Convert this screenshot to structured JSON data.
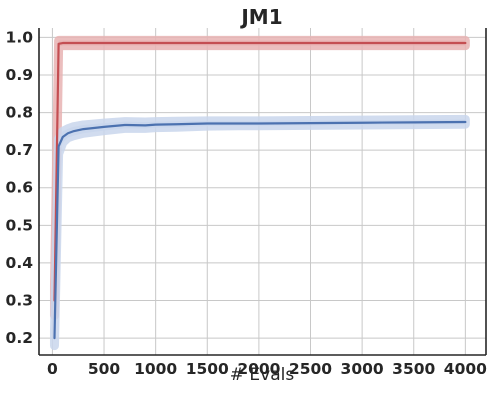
{
  "chart_data": {
    "type": "line",
    "title": "JM1",
    "xlabel": "# Evals",
    "ylabel": "",
    "xlim": [
      -130,
      4200
    ],
    "ylim": [
      0.155,
      1.025
    ],
    "xticks": [
      0,
      500,
      1000,
      1500,
      2000,
      2500,
      3000,
      3500,
      4000
    ],
    "yticks": [
      0.2,
      0.3,
      0.4,
      0.5,
      0.6,
      0.7,
      0.8,
      0.9,
      1.0
    ],
    "xtick_labels": [
      "0",
      "500",
      "1000",
      "1500",
      "2000",
      "2500",
      "3000",
      "3500",
      "4000"
    ],
    "ytick_labels": [
      "0.2",
      "0.3",
      "0.4",
      "0.5",
      "0.6",
      "0.7",
      "0.8",
      "0.9",
      "1.0"
    ],
    "grid": true,
    "series": [
      {
        "color": "#c44e52",
        "band_color": "#e8b3b3",
        "x": [
          20,
          60,
          100,
          200,
          500,
          1000,
          1500,
          2000,
          2500,
          3000,
          3500,
          4000
        ],
        "y": [
          0.3,
          0.983,
          0.985,
          0.985,
          0.985,
          0.985,
          0.985,
          0.985,
          0.985,
          0.985,
          0.985,
          0.985
        ],
        "lower": [
          0.26,
          0.975,
          0.978,
          0.978,
          0.978,
          0.978,
          0.978,
          0.978,
          0.978,
          0.978,
          0.978,
          0.978
        ],
        "upper": [
          0.34,
          0.992,
          0.992,
          0.992,
          0.992,
          0.992,
          0.992,
          0.992,
          0.992,
          0.992,
          0.992,
          0.992
        ]
      },
      {
        "color": "#4c72b0",
        "band_color": "#c9d6ec",
        "x": [
          20,
          60,
          100,
          150,
          200,
          300,
          500,
          700,
          900,
          1000,
          1200,
          1500,
          1800,
          2000,
          2500,
          3000,
          3500,
          4000
        ],
        "y": [
          0.2,
          0.71,
          0.735,
          0.745,
          0.75,
          0.756,
          0.762,
          0.767,
          0.766,
          0.768,
          0.769,
          0.771,
          0.771,
          0.771,
          0.772,
          0.773,
          0.774,
          0.775
        ],
        "lower": [
          0.18,
          0.69,
          0.72,
          0.733,
          0.738,
          0.745,
          0.752,
          0.758,
          0.758,
          0.76,
          0.761,
          0.764,
          0.765,
          0.765,
          0.766,
          0.767,
          0.768,
          0.769
        ],
        "upper": [
          0.22,
          0.73,
          0.75,
          0.757,
          0.762,
          0.767,
          0.772,
          0.776,
          0.775,
          0.776,
          0.777,
          0.778,
          0.778,
          0.778,
          0.779,
          0.78,
          0.781,
          0.782
        ]
      }
    ]
  }
}
